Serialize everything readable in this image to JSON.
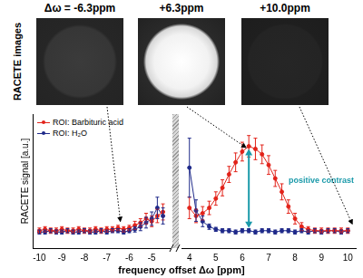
{
  "images": {
    "label": "RACETE images",
    "panels": [
      {
        "label": "Δω = -6.3ppm"
      },
      {
        "label": "+6.3ppm"
      },
      {
        "label": "+10.0ppm"
      }
    ]
  },
  "x_label": "frequency offset Δω [ppm]",
  "chart_data": [
    {
      "type": "line",
      "y_label": "RACETE signal [a.u.]",
      "legend": "top-left",
      "tick_labels": "x",
      "grid": false,
      "xlim": [
        -10.3,
        -4.2
      ],
      "xticks": [
        -10,
        -9,
        -8,
        -7,
        -6,
        -5
      ],
      "ylim": [
        0,
        1
      ],
      "x": [
        -10,
        -9.75,
        -9.5,
        -9.25,
        -9,
        -8.75,
        -8.5,
        -8.25,
        -8,
        -7.75,
        -7.5,
        -7.25,
        -7,
        -6.75,
        -6.5,
        -6.25,
        -6,
        -5.75,
        -5.5,
        -5.25,
        -5,
        -4.75,
        -4.5
      ],
      "series": [
        {
          "name": "ROI: Barbituric acid",
          "color": "#e2231a",
          "marker": "circle",
          "values": [
            0.13,
            0.14,
            0.13,
            0.13,
            0.14,
            0.13,
            0.13,
            0.14,
            0.13,
            0.13,
            0.14,
            0.13,
            0.14,
            0.14,
            0.15,
            0.14,
            0.15,
            0.17,
            0.19,
            0.22,
            0.2,
            0.24,
            0.27
          ],
          "errors": [
            0.02,
            0.02,
            0.02,
            0.02,
            0.02,
            0.02,
            0.02,
            0.02,
            0.02,
            0.02,
            0.02,
            0.02,
            0.02,
            0.02,
            0.02,
            0.02,
            0.02,
            0.03,
            0.03,
            0.04,
            0.04,
            0.05,
            0.06
          ]
        },
        {
          "name": "ROI: H₂O",
          "color": "#1f2a8a",
          "marker": "circle",
          "values": [
            0.12,
            0.12,
            0.13,
            0.12,
            0.12,
            0.13,
            0.12,
            0.12,
            0.13,
            0.12,
            0.12,
            0.13,
            0.12,
            0.13,
            0.13,
            0.12,
            0.13,
            0.14,
            0.16,
            0.19,
            0.22,
            0.3,
            0.24
          ],
          "errors": [
            0.015,
            0.015,
            0.015,
            0.015,
            0.015,
            0.015,
            0.015,
            0.015,
            0.015,
            0.015,
            0.015,
            0.015,
            0.015,
            0.015,
            0.015,
            0.015,
            0.015,
            0.02,
            0.03,
            0.04,
            0.05,
            0.08,
            0.06
          ]
        }
      ]
    },
    {
      "type": "line",
      "tick_labels": "x",
      "grid": false,
      "annotations": [
        "positive contrast"
      ],
      "xlim": [
        3.7,
        10.3
      ],
      "xticks": [
        4,
        5,
        6,
        7,
        8,
        9,
        10
      ],
      "ylim": [
        0,
        1
      ],
      "x": [
        4,
        4.25,
        4.5,
        4.75,
        5,
        5.25,
        5.5,
        5.75,
        6,
        6.25,
        6.5,
        6.75,
        7,
        7.25,
        7.5,
        7.75,
        8,
        8.25,
        8.5,
        8.75,
        9,
        9.25,
        9.5,
        9.75,
        10
      ],
      "series": [
        {
          "color": "#e2231a",
          "marker": "circle",
          "values": [
            0.3,
            0.24,
            0.26,
            0.3,
            0.37,
            0.45,
            0.55,
            0.64,
            0.72,
            0.76,
            0.74,
            0.7,
            0.62,
            0.52,
            0.42,
            0.31,
            0.22,
            0.16,
            0.14,
            0.13,
            0.13,
            0.13,
            0.13,
            0.13,
            0.13
          ],
          "errors": [
            0.08,
            0.05,
            0.05,
            0.05,
            0.05,
            0.06,
            0.06,
            0.07,
            0.07,
            0.08,
            0.08,
            0.07,
            0.07,
            0.06,
            0.06,
            0.05,
            0.04,
            0.03,
            0.02,
            0.02,
            0.02,
            0.02,
            0.02,
            0.02,
            0.02
          ]
        },
        {
          "color": "#1f2a8a",
          "marker": "circle",
          "values": [
            0.6,
            0.28,
            0.2,
            0.16,
            0.14,
            0.13,
            0.13,
            0.12,
            0.13,
            0.13,
            0.12,
            0.13,
            0.13,
            0.12,
            0.13,
            0.13,
            0.12,
            0.13,
            0.12,
            0.13,
            0.12,
            0.13,
            0.13,
            0.12,
            0.13
          ],
          "errors": [
            0.22,
            0.08,
            0.04,
            0.02,
            0.015,
            0.015,
            0.015,
            0.015,
            0.015,
            0.015,
            0.015,
            0.015,
            0.015,
            0.015,
            0.015,
            0.015,
            0.015,
            0.015,
            0.015,
            0.015,
            0.015,
            0.015,
            0.015,
            0.015,
            0.015
          ]
        }
      ]
    }
  ]
}
